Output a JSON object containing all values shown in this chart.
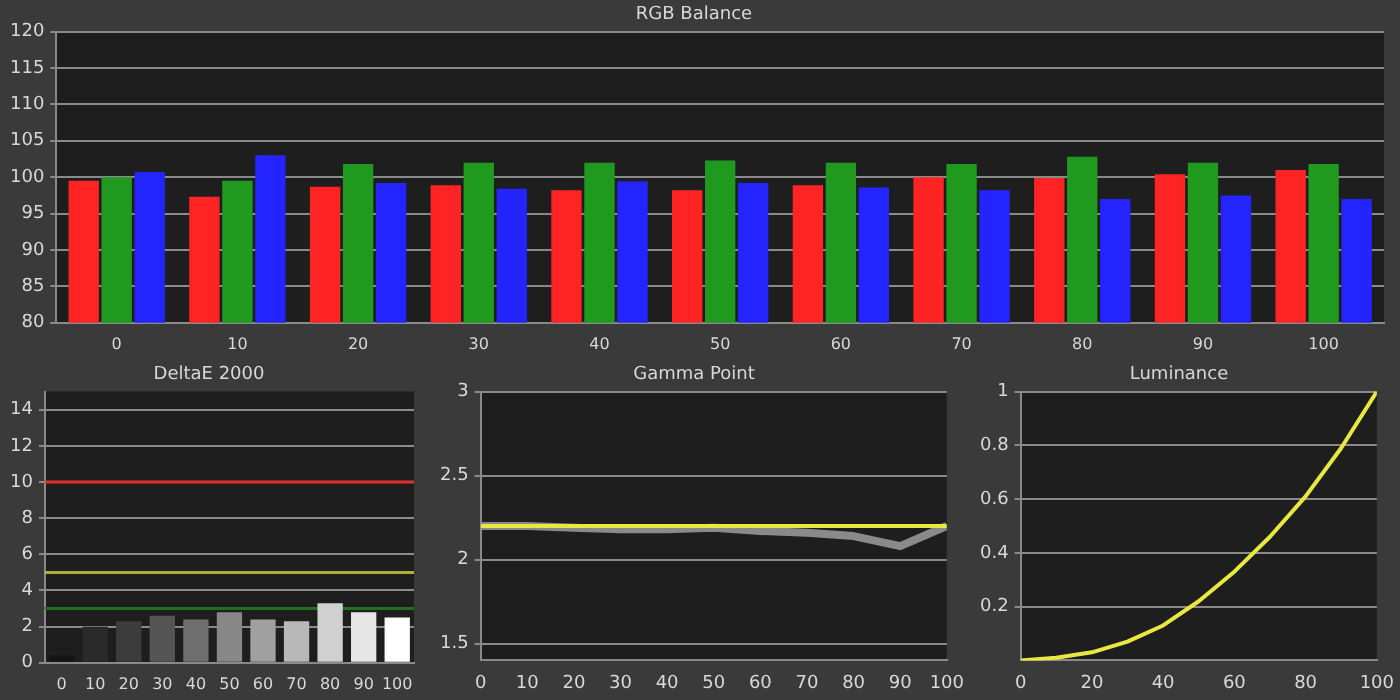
{
  "chart_data": [
    {
      "type": "bar",
      "title": "RGB Balance",
      "categories": [
        "0",
        "10",
        "20",
        "30",
        "40",
        "50",
        "60",
        "70",
        "80",
        "90",
        "100"
      ],
      "series": [
        {
          "color": "#ff2424",
          "values": [
            99.5,
            97.3,
            98.7,
            98.9,
            98.2,
            98.2,
            98.9,
            100,
            99.9,
            100.4,
            101
          ]
        },
        {
          "color": "#1f9a1f",
          "values": [
            100,
            99.5,
            101.8,
            102,
            102,
            102.3,
            102,
            101.8,
            102.8,
            102,
            101.8
          ]
        },
        {
          "color": "#2424ff",
          "values": [
            100.7,
            103,
            99.2,
            98.4,
            99.4,
            99.2,
            98.6,
            98.2,
            97,
            97.5,
            97
          ]
        }
      ],
      "ylim": [
        80,
        120
      ],
      "yticks": [
        80,
        85,
        90,
        95,
        100,
        105,
        110,
        115,
        120
      ],
      "grid": "y",
      "legend": false
    },
    {
      "type": "bar",
      "title": "DeltaE 2000",
      "categories": [
        "0",
        "10",
        "20",
        "30",
        "40",
        "50",
        "60",
        "70",
        "80",
        "90",
        "100"
      ],
      "values": [
        0.4,
        2.0,
        2.3,
        2.6,
        2.4,
        2.8,
        2.4,
        2.3,
        3.3,
        2.8,
        2.5
      ],
      "colors": [
        "#151515",
        "#2a2a2a",
        "#3c3c3c",
        "#555555",
        "#6e6e6e",
        "#878787",
        "#a0a0a0",
        "#b8b8b8",
        "#d0d0d0",
        "#e6e6e6",
        "#ffffff"
      ],
      "ylim": [
        0,
        15
      ],
      "yticks": [
        0,
        2,
        4,
        6,
        8,
        10,
        12,
        14
      ],
      "grid": "y",
      "legend": false,
      "ref_lines": [
        {
          "axis": "y",
          "value": 10,
          "color": "#e03030"
        },
        {
          "axis": "y",
          "value": 5,
          "color": "#b0b030"
        },
        {
          "axis": "y",
          "value": 3,
          "color": "#207020"
        }
      ]
    },
    {
      "type": "line",
      "title": "Gamma Point",
      "x": [
        0,
        10,
        20,
        30,
        40,
        50,
        60,
        70,
        80,
        90,
        100
      ],
      "series": [
        {
          "color": "#e8e840",
          "x": [
            0,
            100
          ],
          "values": [
            2.2,
            2.2
          ]
        },
        {
          "color": "#8a8a8a",
          "values": [
            2.2,
            2.2,
            2.19,
            2.18,
            2.18,
            2.19,
            2.17,
            2.16,
            2.14,
            2.08,
            2.2
          ]
        }
      ],
      "xlim": [
        0,
        100
      ],
      "xticks": [
        0,
        10,
        20,
        30,
        40,
        50,
        60,
        70,
        80,
        90,
        100
      ],
      "ylim": [
        1.4,
        3
      ],
      "yticks": [
        1.5,
        2,
        2.5,
        3
      ],
      "grid": "y",
      "legend": false,
      "marker": "none"
    },
    {
      "type": "line",
      "title": "Luminance",
      "x": [
        0,
        10,
        20,
        30,
        40,
        50,
        60,
        70,
        80,
        90,
        100
      ],
      "series": [
        {
          "color": "#e8e840",
          "values": [
            0,
            0.01,
            0.03,
            0.07,
            0.13,
            0.22,
            0.33,
            0.46,
            0.61,
            0.79,
            1
          ]
        }
      ],
      "xlim": [
        0,
        100
      ],
      "xticks": [
        0,
        20,
        40,
        60,
        80,
        100
      ],
      "ylim": [
        0,
        1
      ],
      "yticks": [
        0.2,
        0.4,
        0.6,
        0.8,
        1
      ],
      "grid": "y",
      "legend": false,
      "marker": "none"
    }
  ]
}
